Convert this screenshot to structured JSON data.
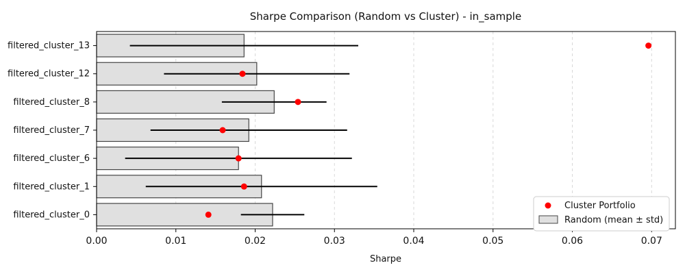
{
  "chart_data": {
    "type": "bar",
    "title": "Sharpe Comparison (Random vs Cluster) - in_sample",
    "xlabel": "Sharpe",
    "ylabel": "",
    "xlim": [
      0,
      0.073
    ],
    "x_ticks": [
      0,
      0.01,
      0.02,
      0.03,
      0.04,
      0.05,
      0.06,
      0.07
    ],
    "x_tick_labels": [
      "0.00",
      "0.01",
      "0.02",
      "0.03",
      "0.04",
      "0.05",
      "0.06",
      "0.07"
    ],
    "grid": {
      "x": true,
      "y": false
    },
    "categories": [
      "filtered_cluster_0",
      "filtered_cluster_1",
      "filtered_cluster_6",
      "filtered_cluster_7",
      "filtered_cluster_8",
      "filtered_cluster_12",
      "filtered_cluster_13"
    ],
    "series": [
      {
        "name": "Random (mean ± std)",
        "kind": "bar",
        "values": [
          0.0222,
          0.0208,
          0.0179,
          0.0192,
          0.0224,
          0.0202,
          0.0186
        ],
        "errors": [
          0.004,
          0.0146,
          0.0143,
          0.0124,
          0.0066,
          0.0117,
          0.0144
        ],
        "color": "#e0e0e0",
        "edge_color": "#444444"
      },
      {
        "name": "Cluster Portfolio",
        "kind": "scatter",
        "values": [
          0.0141,
          0.0186,
          0.0179,
          0.0159,
          0.0254,
          0.0184,
          0.0696
        ],
        "color": "#ff0000"
      }
    ],
    "legend": {
      "placement": "lower-right",
      "entries": [
        "Cluster Portfolio",
        "Random (mean ± std)"
      ]
    }
  }
}
